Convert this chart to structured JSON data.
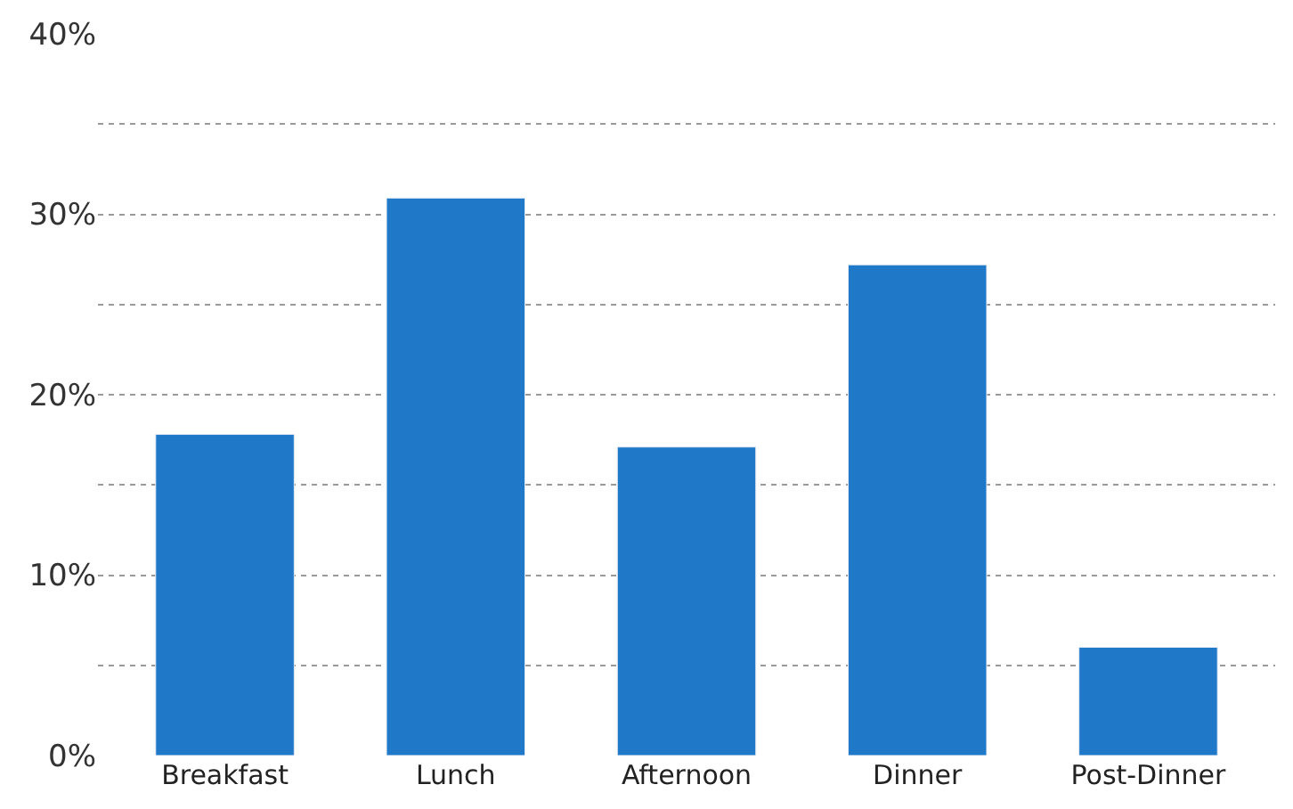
{
  "chart_data": {
    "type": "bar",
    "categories": [
      "Breakfast",
      "Lunch",
      "Afternoon",
      "Dinner",
      "Post-Dinner"
    ],
    "values": [
      17.8,
      30.9,
      17.1,
      27.2,
      6.0
    ],
    "color": "#1f78c8",
    "ylim": [
      0,
      40
    ],
    "yticks": [
      {
        "value": 0,
        "label": "0%"
      },
      {
        "value": 5,
        "label": null
      },
      {
        "value": 10,
        "label": "10%"
      },
      {
        "value": 15,
        "label": null
      },
      {
        "value": 20,
        "label": "20%"
      },
      {
        "value": 25,
        "label": null
      },
      {
        "value": 30,
        "label": "30%"
      },
      {
        "value": 35,
        "label": null
      },
      {
        "value": 40,
        "label": "40%"
      }
    ],
    "grid": "y"
  }
}
